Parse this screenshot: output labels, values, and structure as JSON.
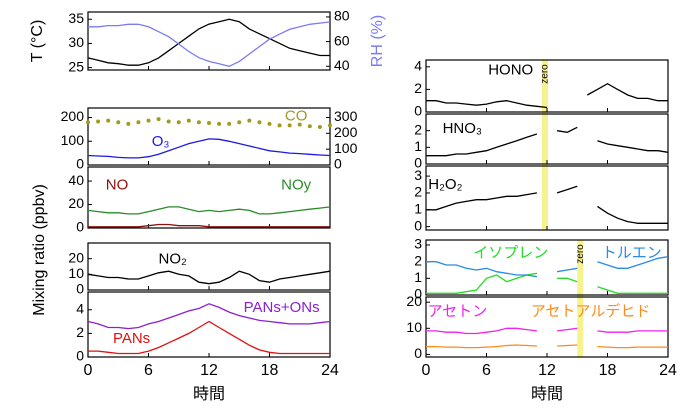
{
  "chart_data": [
    {
      "type": "line",
      "xlabel": "時間",
      "ylabel": "Mixing ratio (ppbv)",
      "xlim": [
        0,
        24
      ],
      "xticks": [
        0,
        6,
        12,
        18,
        24
      ],
      "x": [
        0,
        1,
        2,
        3,
        4,
        5,
        6,
        7,
        8,
        9,
        10,
        11,
        12,
        13,
        14,
        15,
        16,
        17,
        18,
        19,
        20,
        21,
        22,
        23,
        24
      ],
      "panels": [
        {
          "ylabel": "T (°C)",
          "y2label": "RH (%)",
          "ylim": [
            24.5,
            36.5
          ],
          "yticks": [
            25,
            30,
            35
          ],
          "y2lim": [
            37,
            84
          ],
          "y2ticks": [
            40,
            60,
            80
          ],
          "series": [
            {
              "color": "#000000",
              "values": [
                27,
                26.5,
                26,
                25.8,
                25.5,
                25.5,
                26,
                27,
                28.5,
                30,
                31.5,
                33,
                34,
                34.5,
                35,
                34.5,
                33,
                32,
                31,
                30,
                29,
                28.5,
                28,
                27.5,
                27.5
              ]
            },
            {
              "color": "#7b7bf5",
              "axis": "y2",
              "values": [
                72,
                72,
                73,
                73,
                74,
                74,
                72,
                68,
                64,
                58,
                52,
                47,
                44,
                42,
                40,
                44,
                50,
                56,
                62,
                66,
                70,
                72,
                74,
                75,
                76
              ]
            }
          ]
        },
        {
          "ylim": [
            0,
            240
          ],
          "yticks": [
            0,
            100,
            200
          ],
          "y2lim": [
            0,
            360
          ],
          "y2ticks": [
            0,
            100,
            200,
            300
          ],
          "series": [
            {
              "name": "CO",
              "color": "#a09a20",
              "axis": "y2",
              "style": "dots",
              "values": [
                270,
                275,
                280,
                270,
                260,
                270,
                280,
                290,
                275,
                270,
                280,
                270,
                265,
                260,
                260,
                270,
                280,
                270,
                260,
                250,
                250,
                255,
                245,
                240,
                250
              ]
            },
            {
              "name": "O₃",
              "color": "#1a1ae6",
              "values": [
                40,
                38,
                36,
                32,
                30,
                30,
                35,
                45,
                60,
                75,
                90,
                100,
                110,
                108,
                100,
                90,
                80,
                70,
                60,
                55,
                50,
                48,
                45,
                42,
                40
              ]
            }
          ]
        },
        {
          "ylim": [
            0,
            52
          ],
          "yticks": [
            0,
            20,
            40
          ],
          "series": [
            {
              "name": "NO",
              "color": "#8b1010",
              "values": [
                1,
                1,
                1,
                1,
                1,
                1,
                2,
                3,
                3,
                2,
                2,
                2,
                1,
                1,
                1,
                1,
                1,
                1,
                1,
                1,
                1,
                1,
                1,
                1,
                1
              ]
            },
            {
              "name": "NOy",
              "color": "#2a8a2a",
              "values": [
                15,
                14,
                13,
                13,
                12,
                12,
                14,
                16,
                18,
                18,
                16,
                14,
                15,
                14,
                15,
                16,
                15,
                12,
                12,
                13,
                14,
                15,
                16,
                17,
                18
              ]
            }
          ]
        },
        {
          "ylim": [
            0,
            30
          ],
          "yticks": [
            0,
            10,
            20
          ],
          "series": [
            {
              "name": "NO₂",
              "color": "#000000",
              "values": [
                10,
                9,
                8,
                8,
                7,
                7,
                9,
                11,
                12,
                10,
                9,
                5,
                4,
                5,
                8,
                12,
                10,
                6,
                5,
                7,
                8,
                9,
                10,
                11,
                12
              ]
            }
          ]
        },
        {
          "ylim": [
            0,
            5.5
          ],
          "yticks": [
            0,
            2,
            4
          ],
          "series": [
            {
              "name": "PANs+ONs",
              "color": "#8a1fd6",
              "values": [
                3,
                2.8,
                2.5,
                2.5,
                2.4,
                2.5,
                2.8,
                3,
                3.3,
                3.6,
                3.9,
                4.1,
                4.5,
                4.2,
                3.8,
                3.5,
                3.3,
                3.1,
                3,
                2.9,
                2.8,
                2.8,
                2.8,
                2.9,
                3
              ]
            },
            {
              "name": "PANs",
              "color": "#e01010",
              "values": [
                0.5,
                0.5,
                0.4,
                0.3,
                0.3,
                0.3,
                0.5,
                0.8,
                1.2,
                1.6,
                2,
                2.5,
                3,
                2.5,
                2,
                1.5,
                1,
                0.6,
                0.4,
                0.3,
                0.3,
                0.3,
                0.3,
                0.3,
                0.3
              ]
            }
          ]
        }
      ]
    },
    {
      "type": "line",
      "xlabel": "時間",
      "xlim": [
        0,
        24
      ],
      "xticks": [
        0,
        6,
        12,
        18,
        24
      ],
      "x": [
        0,
        1,
        2,
        3,
        4,
        5,
        6,
        7,
        8,
        9,
        10,
        11,
        12,
        13,
        14,
        15,
        16,
        17,
        18,
        19,
        20,
        21,
        22,
        23,
        24
      ],
      "panels": [
        {
          "ylim": [
            0,
            4.6
          ],
          "yticks": [
            0,
            2,
            4
          ],
          "annotations": [
            {
              "text": "zero",
              "x": 11.8
            }
          ],
          "series": [
            {
              "name": "HONO",
              "color": "#000000",
              "values": [
                1,
                1,
                0.8,
                0.8,
                0.7,
                0.6,
                0.7,
                0.9,
                1,
                0.8,
                0.6,
                0.5,
                0.4,
                null,
                null,
                null,
                1.5,
                2,
                2.5,
                2,
                1.5,
                1.2,
                1.2,
                1,
                1
              ]
            }
          ]
        },
        {
          "ylim": [
            0,
            3
          ],
          "yticks": [
            0,
            1,
            2
          ],
          "series": [
            {
              "name": "HNO₃",
              "color": "#000000",
              "values": [
                0.5,
                0.5,
                0.5,
                0.6,
                0.6,
                0.7,
                0.8,
                1,
                1.2,
                1.4,
                1.6,
                1.8,
                null,
                2,
                1.9,
                2.2,
                null,
                1.4,
                1.2,
                1.1,
                1,
                0.9,
                0.8,
                0.8,
                0.7
              ]
            }
          ]
        },
        {
          "ylim": [
            -0.2,
            3.6
          ],
          "yticks": [
            0,
            1,
            2,
            3
          ],
          "series": [
            {
              "name": "H₂O₂",
              "color": "#000000",
              "values": [
                1,
                1,
                1.2,
                1.4,
                1.5,
                1.6,
                1.6,
                1.7,
                1.8,
                1.8,
                1.9,
                2,
                null,
                2,
                2.2,
                2.4,
                null,
                1.2,
                0.8,
                0.5,
                0.3,
                0.2,
                0.2,
                0.2,
                0.2
              ]
            }
          ]
        },
        {
          "ylim": [
            0,
            3.3
          ],
          "yticks": [
            0,
            1,
            2,
            3
          ],
          "annotations": [
            {
              "text": "zero",
              "x": 15.3
            }
          ],
          "series": [
            {
              "name": "イソプレン",
              "color": "#22dd22",
              "values": [
                0.1,
                0.1,
                0.1,
                0.1,
                0.2,
                0.3,
                1,
                1.2,
                0.8,
                1,
                1.2,
                1.3,
                null,
                1,
                1,
                0.8,
                null,
                0.5,
                0.3,
                0.1,
                0.1,
                0.1,
                0.1,
                0.1,
                0.1
              ]
            },
            {
              "name": "トルエン",
              "color": "#2a8ae6",
              "values": [
                2,
                2,
                1.8,
                1.8,
                1.6,
                1.5,
                1.6,
                1.4,
                1.3,
                1.2,
                1.2,
                1.1,
                null,
                1.4,
                1.5,
                1.6,
                null,
                2,
                1.8,
                1.6,
                1.6,
                1.8,
                2,
                2.2,
                2.3
              ]
            }
          ]
        },
        {
          "ylim": [
            -1,
            22
          ],
          "yticks": [
            0,
            10,
            20
          ],
          "series": [
            {
              "name": "アセトン",
              "color": "#ee22ee",
              "values": [
                9,
                9,
                8.5,
                8.5,
                8,
                8,
                8.5,
                9,
                10,
                10,
                9.5,
                9,
                null,
                9,
                9.5,
                10,
                null,
                9,
                8.5,
                8.5,
                8.5,
                9,
                9,
                9,
                9
              ]
            },
            {
              "name": "アセトアルデヒド",
              "color": "#ff8a1a",
              "values": [
                3,
                3,
                2.8,
                2.8,
                2.6,
                2.6,
                2.8,
                3,
                3.4,
                3.6,
                3.4,
                3.2,
                null,
                3.2,
                3.4,
                3.6,
                null,
                3,
                2.8,
                2.6,
                2.6,
                2.8,
                2.8,
                2.8,
                2.8
              ]
            }
          ]
        }
      ]
    }
  ]
}
